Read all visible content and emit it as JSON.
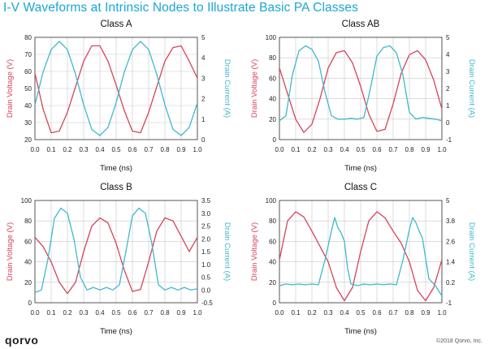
{
  "header": {
    "title": "I-V Waveforms at Intrinsic Nodes to Illustrate Basic PA Classes"
  },
  "footer": {
    "logo": "qorvo",
    "copyright": "©2018 Qorvo, Inc."
  },
  "colors": {
    "voltage": "#d6435a",
    "current": "#3fb8cf",
    "title": "#1aa6d6",
    "axis": "#333333",
    "grid": "#c8c8c8"
  },
  "chart_data": [
    {
      "type": "line",
      "title": "Class A",
      "xlabel": "Time (ns)",
      "ylabel": "Drain Voltage (V)",
      "y2label": "Drain Current (A)",
      "xlim": [
        0,
        1.0
      ],
      "ylim": [
        20,
        80
      ],
      "y2lim": [
        0,
        5
      ],
      "xticks": [
        "0.0",
        "0.1",
        "0.2",
        "0.3",
        "0.4",
        "0.5",
        "0.6",
        "0.7",
        "0.8",
        "0.9",
        "1.0"
      ],
      "yticks": [
        "20",
        "30",
        "40",
        "50",
        "60",
        "70",
        "80"
      ],
      "y2ticks": [
        "0",
        "1",
        "2",
        "3",
        "4",
        "5"
      ],
      "series": [
        {
          "name": "Drain Voltage",
          "axis": "left",
          "x": [
            0,
            0.05,
            0.1,
            0.15,
            0.2,
            0.25,
            0.3,
            0.35,
            0.4,
            0.45,
            0.5,
            0.55,
            0.6,
            0.65,
            0.7,
            0.75,
            0.8,
            0.85,
            0.9,
            0.95,
            1.0
          ],
          "y": [
            59,
            38,
            24,
            25,
            36,
            51,
            66,
            75,
            75,
            66,
            52,
            37,
            25,
            24,
            36,
            51,
            66,
            74,
            75,
            66,
            56
          ]
        },
        {
          "name": "Drain Current",
          "axis": "right",
          "x": [
            0,
            0.05,
            0.1,
            0.15,
            0.2,
            0.25,
            0.3,
            0.35,
            0.4,
            0.45,
            0.5,
            0.55,
            0.6,
            0.65,
            0.7,
            0.75,
            0.8,
            0.85,
            0.9,
            0.95,
            1.0
          ],
          "y": [
            1.7,
            3.3,
            4.4,
            4.8,
            4.4,
            3.2,
            1.7,
            0.5,
            0.2,
            0.6,
            1.8,
            3.3,
            4.4,
            4.8,
            4.4,
            3.2,
            1.7,
            0.5,
            0.2,
            0.6,
            1.8
          ]
        }
      ]
    },
    {
      "type": "line",
      "title": "Class AB",
      "xlabel": "Time (ns)",
      "ylabel": "Drain Voltage (V)",
      "y2label": "Drain Current (A)",
      "xlim": [
        0,
        1.0
      ],
      "ylim": [
        0,
        100
      ],
      "y2lim": [
        -1,
        5
      ],
      "xticks": [
        "0.0",
        "0.1",
        "0.2",
        "0.3",
        "0.4",
        "0.5",
        "0.6",
        "0.7",
        "0.8",
        "0.9",
        "1.0"
      ],
      "yticks": [
        "0",
        "20",
        "40",
        "60",
        "80",
        "100"
      ],
      "y2ticks": [
        "-1",
        "0",
        "1",
        "2",
        "3",
        "4",
        "5"
      ],
      "series": [
        {
          "name": "Drain Voltage",
          "axis": "left",
          "x": [
            0,
            0.05,
            0.1,
            0.15,
            0.2,
            0.25,
            0.3,
            0.35,
            0.4,
            0.45,
            0.5,
            0.55,
            0.6,
            0.65,
            0.7,
            0.75,
            0.8,
            0.85,
            0.9,
            0.95,
            1.0
          ],
          "y": [
            70,
            45,
            20,
            7,
            15,
            40,
            70,
            85,
            87,
            75,
            52,
            25,
            8,
            10,
            35,
            65,
            83,
            87,
            78,
            58,
            30
          ]
        },
        {
          "name": "Drain Current",
          "axis": "right",
          "x": [
            0,
            0.04,
            0.08,
            0.12,
            0.16,
            0.2,
            0.24,
            0.28,
            0.32,
            0.36,
            0.4,
            0.44,
            0.48,
            0.52,
            0.56,
            0.6,
            0.64,
            0.68,
            0.72,
            0.76,
            0.8,
            0.84,
            0.88,
            0.92,
            0.96,
            1.0
          ],
          "y": [
            0.1,
            0.4,
            2.8,
            4.2,
            4.5,
            4.3,
            3.6,
            1.8,
            0.4,
            0.2,
            0.2,
            0.25,
            0.2,
            0.3,
            2.0,
            3.9,
            4.4,
            4.5,
            4.1,
            2.8,
            0.6,
            0.2,
            0.3,
            0.25,
            0.2,
            0.1
          ]
        }
      ]
    },
    {
      "type": "line",
      "title": "Class B",
      "xlabel": "Time (ns)",
      "ylabel": "Drain Voltage (V)",
      "y2label": "Drain Current (A)",
      "xlim": [
        0,
        1.0
      ],
      "ylim": [
        0,
        100
      ],
      "y2lim": [
        -0.5,
        3.5
      ],
      "xticks": [
        "0.0",
        "0.1",
        "0.2",
        "0.3",
        "0.4",
        "0.5",
        "0.6",
        "0.7",
        "0.8",
        "0.9",
        "1.0"
      ],
      "yticks": [
        "0",
        "20",
        "40",
        "60",
        "80",
        "100"
      ],
      "y2ticks": [
        "-0.5",
        "0.0",
        "0.5",
        "1.0",
        "1.5",
        "2.0",
        "2.5",
        "3.0",
        "3.5"
      ],
      "series": [
        {
          "name": "Drain Voltage",
          "axis": "left",
          "x": [
            0,
            0.05,
            0.1,
            0.15,
            0.2,
            0.25,
            0.3,
            0.35,
            0.4,
            0.45,
            0.5,
            0.55,
            0.6,
            0.65,
            0.7,
            0.75,
            0.8,
            0.85,
            0.9,
            0.95,
            1.0
          ],
          "y": [
            64,
            55,
            40,
            20,
            9,
            20,
            50,
            75,
            83,
            78,
            58,
            32,
            11,
            13,
            40,
            70,
            83,
            80,
            65,
            50,
            64
          ]
        },
        {
          "name": "Drain Current",
          "axis": "right",
          "x": [
            0,
            0.04,
            0.08,
            0.12,
            0.16,
            0.2,
            0.24,
            0.28,
            0.32,
            0.36,
            0.4,
            0.44,
            0.48,
            0.52,
            0.56,
            0.6,
            0.64,
            0.68,
            0.72,
            0.76,
            0.8,
            0.84,
            0.88,
            0.92,
            0.96,
            1.0
          ],
          "y": [
            -0.1,
            0.0,
            1.2,
            2.8,
            3.2,
            3.0,
            2.0,
            0.5,
            0.0,
            0.1,
            0.0,
            0.1,
            0.0,
            0.2,
            1.5,
            2.9,
            3.2,
            3.0,
            1.8,
            0.2,
            0.0,
            0.1,
            0.0,
            0.1,
            0.0,
            0.05
          ]
        }
      ]
    },
    {
      "type": "line",
      "title": "Class C",
      "xlabel": "Time (ns)",
      "ylabel": "Drain Voltage (V)",
      "y2label": "Drain Current (A)",
      "xlim": [
        0,
        1.0
      ],
      "ylim": [
        0,
        100
      ],
      "y2lim": [
        -1,
        5
      ],
      "xticks": [
        "0.0",
        "0.1",
        "0.2",
        "0.3",
        "0.4",
        "0.5",
        "0.6",
        "0.7",
        "0.8",
        "0.9",
        "1.0"
      ],
      "yticks": [
        "0",
        "20",
        "40",
        "60",
        "80",
        "100"
      ],
      "y2ticks": [
        "-1",
        "0.2",
        "1.4",
        "2.6",
        "3.8",
        "5"
      ],
      "series": [
        {
          "name": "Drain Voltage",
          "axis": "left",
          "x": [
            0,
            0.05,
            0.1,
            0.15,
            0.2,
            0.25,
            0.3,
            0.35,
            0.4,
            0.45,
            0.5,
            0.55,
            0.6,
            0.65,
            0.7,
            0.75,
            0.8,
            0.85,
            0.9,
            0.95,
            1.0
          ],
          "y": [
            42,
            80,
            89,
            84,
            70,
            55,
            40,
            15,
            2,
            15,
            50,
            80,
            89,
            83,
            70,
            58,
            40,
            12,
            2,
            15,
            42
          ]
        },
        {
          "name": "Drain Current",
          "axis": "right",
          "x": [
            0,
            0.04,
            0.08,
            0.12,
            0.16,
            0.2,
            0.24,
            0.28,
            0.32,
            0.34,
            0.36,
            0.38,
            0.4,
            0.42,
            0.44,
            0.48,
            0.52,
            0.56,
            0.6,
            0.64,
            0.68,
            0.72,
            0.76,
            0.8,
            0.82,
            0.84,
            0.86,
            0.88,
            0.9,
            0.92,
            0.96,
            1.0
          ],
          "y": [
            0.0,
            0.1,
            0.05,
            0.1,
            0.05,
            0.1,
            0.05,
            1.5,
            3.2,
            4.0,
            3.4,
            3.1,
            2.6,
            1.0,
            0.1,
            0.0,
            0.1,
            0.05,
            0.1,
            0.05,
            0.1,
            0.05,
            1.5,
            3.3,
            4.0,
            3.7,
            3.2,
            2.8,
            1.6,
            0.4,
            0.0,
            -0.6
          ]
        }
      ]
    }
  ]
}
